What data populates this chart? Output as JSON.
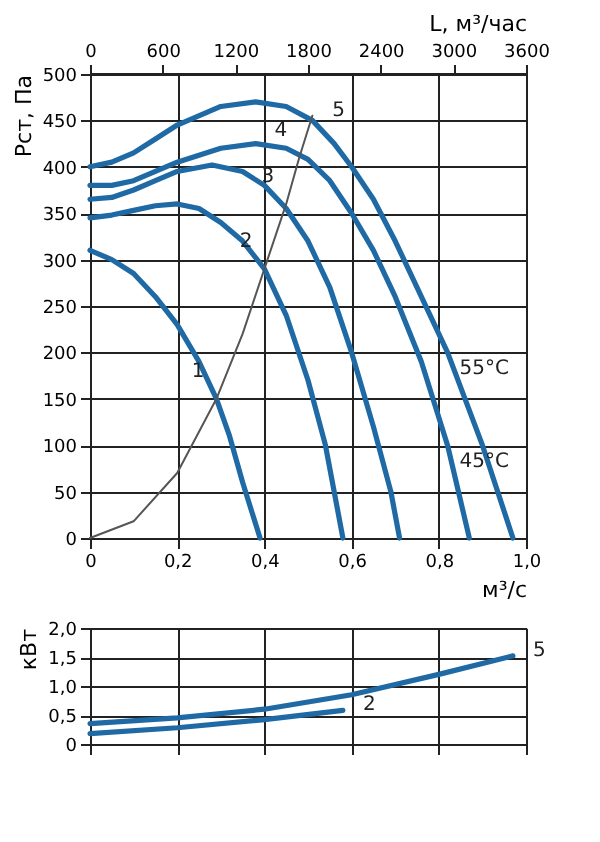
{
  "chart_data": [
    {
      "type": "line",
      "xlabel": "м³/с",
      "ylabel": "Рст, Па",
      "x2label": "L, м³/час",
      "xlim": [
        0,
        1
      ],
      "xticks": [
        0,
        {
          "value": 0.2,
          "label": "0,2"
        },
        {
          "value": 0.4,
          "label": "0,4"
        },
        {
          "value": 0.6,
          "label": "0,6"
        },
        {
          "value": 0.8,
          "label": "0,8"
        },
        {
          "value": 1,
          "label": "1,0"
        }
      ],
      "x2lim": [
        0,
        3600
      ],
      "x2ticks": [
        0,
        600,
        1200,
        1800,
        2400,
        3000,
        3600
      ],
      "ylim": [
        0,
        500
      ],
      "yticks": [
        0,
        50,
        100,
        150,
        200,
        250,
        300,
        350,
        400,
        450,
        500
      ],
      "grid": true,
      "line_style": "solid",
      "marker": "none",
      "series": [
        {
          "color": "#1f6aa5",
          "x": [
            0,
            0.05,
            0.1,
            0.15,
            0.2,
            0.25,
            0.29,
            0.32,
            0.35,
            0.37,
            0.39
          ],
          "values": [
            310,
            300,
            285,
            260,
            230,
            190,
            150,
            110,
            60,
            30,
            0
          ]
        },
        {
          "color": "#1f6aa5",
          "x": [
            0,
            0.05,
            0.1,
            0.15,
            0.2,
            0.25,
            0.3,
            0.35,
            0.4,
            0.45,
            0.5,
            0.54,
            0.58
          ],
          "values": [
            345,
            348,
            353,
            358,
            360,
            355,
            340,
            320,
            290,
            240,
            170,
            100,
            0
          ]
        },
        {
          "color": "#1f6aa5",
          "x": [
            0,
            0.05,
            0.1,
            0.15,
            0.2,
            0.28,
            0.35,
            0.4,
            0.45,
            0.5,
            0.55,
            0.6,
            0.65,
            0.69,
            0.71
          ],
          "values": [
            365,
            367,
            375,
            385,
            395,
            402,
            395,
            380,
            355,
            320,
            270,
            200,
            120,
            50,
            0
          ]
        },
        {
          "color": "#1f6aa5",
          "x": [
            0,
            0.05,
            0.1,
            0.15,
            0.2,
            0.3,
            0.38,
            0.45,
            0.5,
            0.55,
            0.6,
            0.65,
            0.7,
            0.76,
            0.82,
            0.87
          ],
          "values": [
            380,
            380,
            385,
            395,
            405,
            420,
            425,
            420,
            408,
            385,
            350,
            310,
            260,
            190,
            100,
            0
          ]
        },
        {
          "color": "#1f6aa5",
          "x": [
            0,
            0.05,
            0.1,
            0.15,
            0.2,
            0.3,
            0.38,
            0.45,
            0.51,
            0.56,
            0.6,
            0.65,
            0.7,
            0.75,
            0.82,
            0.9,
            0.97
          ],
          "values": [
            400,
            405,
            415,
            430,
            445,
            465,
            470,
            465,
            450,
            425,
            400,
            365,
            320,
            270,
            200,
            100,
            0
          ]
        },
        {
          "color": "#555555",
          "x": [
            0,
            0.1,
            0.2,
            0.29,
            0.35,
            0.4,
            0.45,
            0.48,
            0.51
          ],
          "values": [
            0,
            18,
            70,
            150,
            220,
            290,
            360,
            410,
            455
          ]
        }
      ],
      "annotations": [
        {
          "text": "1",
          "x": 0.29,
          "y": 150
        },
        {
          "text": "2",
          "x": 0.4,
          "y": 290
        },
        {
          "text": "3",
          "x": 0.45,
          "y": 360
        },
        {
          "text": "4",
          "x": 0.48,
          "y": 410
        },
        {
          "text": "5",
          "x": 0.51,
          "y": 455
        },
        {
          "text": "55°C",
          "x": 0.82,
          "y": 200
        },
        {
          "text": "45°C",
          "x": 0.82,
          "y": 100
        }
      ]
    },
    {
      "type": "line",
      "ylabel": "кВт",
      "xlim": [
        0,
        1
      ],
      "xticks": [
        0,
        0.2,
        0.4,
        0.6,
        0.8,
        1
      ],
      "ylim": [
        0,
        2
      ],
      "yticks": [
        0,
        {
          "value": 0.5,
          "label": "0,5"
        },
        {
          "value": 1,
          "label": "1,0"
        },
        {
          "value": 1.5,
          "label": "1,5"
        },
        {
          "value": 2,
          "label": "2,0"
        }
      ],
      "grid": true,
      "tick_labels": "y",
      "line_style": "solid",
      "marker": "none",
      "series": [
        {
          "color": "#1f6aa5",
          "x": [
            0,
            0.2,
            0.4,
            0.6,
            0.8,
            0.97
          ],
          "values": [
            0.35,
            0.45,
            0.6,
            0.85,
            1.2,
            1.52
          ]
        },
        {
          "color": "#1f6aa5",
          "x": [
            0,
            0.2,
            0.4,
            0.58
          ],
          "values": [
            0.18,
            0.28,
            0.42,
            0.58
          ]
        }
      ],
      "annotations": [
        {
          "text": "2",
          "x": 0.58,
          "y": 0.58
        },
        {
          "text": "5",
          "x": 0.97,
          "y": 1.52
        }
      ]
    }
  ]
}
